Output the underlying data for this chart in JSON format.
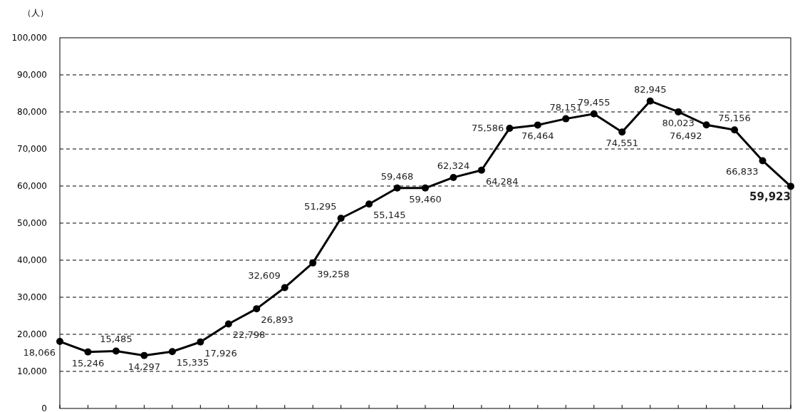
{
  "chart_data": {
    "type": "line",
    "ylabel": "（人）",
    "categories": [
      null,
      null,
      null,
      null,
      null,
      null,
      null,
      null,
      null,
      null,
      null,
      null,
      null,
      null,
      null,
      null,
      null,
      null,
      null,
      null,
      null,
      null,
      null,
      null,
      null,
      null,
      null
    ],
    "series": [
      {
        "color": "#000000",
        "values": [
          18066,
          15246,
          15485,
          14297,
          15335,
          17926,
          22798,
          26893,
          32609,
          39258,
          51295,
          55145,
          59468,
          59460,
          62324,
          64284,
          75586,
          76464,
          78151,
          79455,
          74551,
          82945,
          80023,
          76492,
          75156,
          66833,
          59923
        ],
        "value_labels": [
          "18,066",
          "15,246",
          "15,485",
          "14,297",
          "15,335",
          "17,926",
          "22,798",
          "26,893",
          "32,609",
          "39,258",
          "51,295",
          "55,145",
          "59,468",
          "59,460",
          "62,324",
          "64,284",
          "75,586",
          "76,464",
          "78,151",
          "79,455",
          "74,551",
          "82,945",
          "80,023",
          "76,492",
          "75,156",
          "66,833",
          "59,923"
        ]
      }
    ],
    "ylim": [
      0,
      100000
    ],
    "yticks": [
      0,
      {
        "value": 10000,
        "label": "10,000"
      },
      {
        "value": 20000,
        "label": "20,000"
      },
      {
        "value": 30000,
        "label": "30,000"
      },
      {
        "value": 40000,
        "label": "40,000"
      },
      {
        "value": 50000,
        "label": "50,000"
      },
      {
        "value": 60000,
        "label": "60,000"
      },
      {
        "value": 70000,
        "label": "70,000"
      },
      {
        "value": 80000,
        "label": "80,000"
      },
      {
        "value": 90000,
        "label": "90,000"
      },
      {
        "value": 100000,
        "label": "100,000"
      }
    ],
    "grid": "y",
    "marker": "circle",
    "line_style": "solid",
    "tick_labels": "y"
  }
}
